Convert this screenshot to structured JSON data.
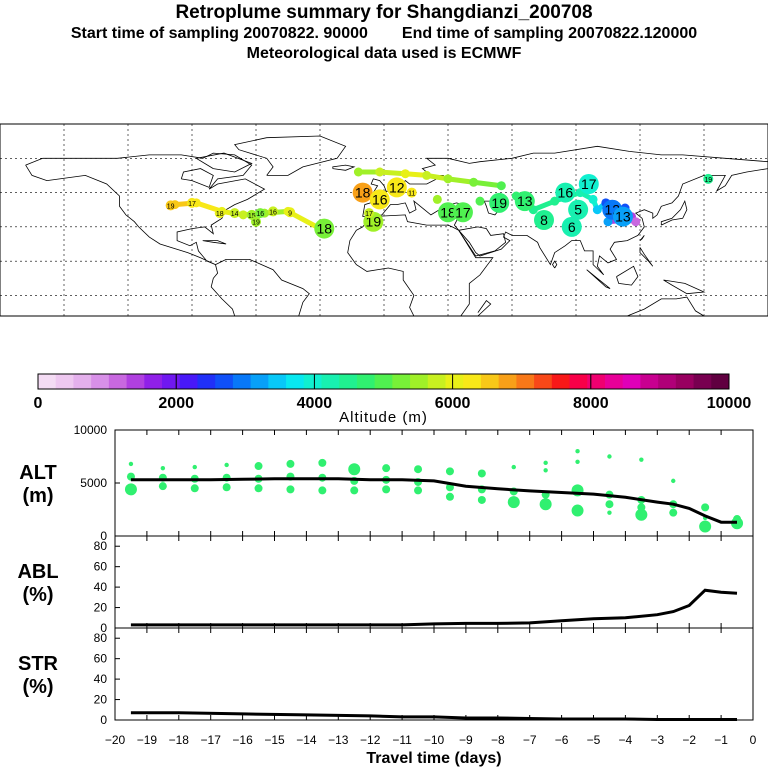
{
  "header": {
    "title": "Retroplume summary for Shangdianzi_200708",
    "start": "Start time of sampling 20070822. 90000",
    "end": "End time of sampling 20070822.120000",
    "met": "Meteorological data used is ECMWF"
  },
  "colorbar": {
    "label": "Altitude (m)",
    "ticks": [
      "0",
      "2000",
      "4000",
      "6000",
      "8000",
      "10000"
    ],
    "min": 0,
    "max": 10000,
    "colors": [
      "#f4dcf4",
      "#eec8f0",
      "#e4b0ec",
      "#d890e8",
      "#c868e0",
      "#b040e0",
      "#9020e8",
      "#7018f0",
      "#4818f8",
      "#2030f8",
      "#1050f8",
      "#0878f8",
      "#08a0f8",
      "#08c8f8",
      "#08e8f0",
      "#10f0d0",
      "#18f0b0",
      "#20f090",
      "#30f070",
      "#50f050",
      "#78f038",
      "#a0f028",
      "#c8f020",
      "#e8f018",
      "#f8e818",
      "#f8c818",
      "#f8a018",
      "#f87818",
      "#f84818",
      "#f81818",
      "#f80048",
      "#f00070",
      "#e80098",
      "#e000b8",
      "#c80090",
      "#b00078",
      "#980060",
      "#780050",
      "#600040"
    ]
  },
  "map": {
    "labels": [
      {
        "t": "19",
        "lon": -100.0,
        "lat": 42.5,
        "c": "#f8c818",
        "big": false
      },
      {
        "t": "17",
        "lon": -90.0,
        "lat": 44.0,
        "c": "#f8e818",
        "big": false
      },
      {
        "t": "18",
        "lon": -77.0,
        "lat": 38.0,
        "c": "#e8f018",
        "big": false
      },
      {
        "t": "14",
        "lon": -70.0,
        "lat": 38.0,
        "c": "#c8f020",
        "big": false
      },
      {
        "t": "15",
        "lon": -62.0,
        "lat": 37.0,
        "c": "#a0f028",
        "big": false
      },
      {
        "t": "16",
        "lon": -58.0,
        "lat": 38.0,
        "c": "#78f038",
        "big": false
      },
      {
        "t": "19",
        "lon": -60.0,
        "lat": 33.0,
        "c": "#a0f028",
        "big": false
      },
      {
        "t": "16",
        "lon": -52.0,
        "lat": 39.0,
        "c": "#c8f020",
        "big": false
      },
      {
        "t": "9",
        "lon": -44.0,
        "lat": 38.5,
        "c": "#e8f018",
        "big": false
      },
      {
        "t": "18",
        "lon": -28.0,
        "lat": 29.0,
        "c": "#78f038",
        "big": true
      },
      {
        "t": "19",
        "lon": -5.0,
        "lat": 33.0,
        "c": "#a0f028",
        "big": true
      },
      {
        "t": "17",
        "lon": -7.0,
        "lat": 38.0,
        "c": "#c8f020",
        "big": false
      },
      {
        "t": "18",
        "lon": -10.0,
        "lat": 50.0,
        "c": "#f8a018",
        "big": true
      },
      {
        "t": "16",
        "lon": -2.0,
        "lat": 46.0,
        "c": "#f8e818",
        "big": true
      },
      {
        "t": "12",
        "lon": 6.0,
        "lat": 53.0,
        "c": "#f8e818",
        "big": true
      },
      {
        "t": "11",
        "lon": 13.0,
        "lat": 50.0,
        "c": "#f8e818",
        "big": false
      },
      {
        "t": "18",
        "lon": 30.0,
        "lat": 38.5,
        "c": "#50f050",
        "big": true
      },
      {
        "t": "17",
        "lon": 37.0,
        "lat": 38.5,
        "c": "#50f050",
        "big": true
      },
      {
        "t": "19",
        "lon": 54.0,
        "lat": 44.0,
        "c": "#30f070",
        "big": true
      },
      {
        "t": "13",
        "lon": 66.0,
        "lat": 45.0,
        "c": "#30f070",
        "big": true
      },
      {
        "t": "8",
        "lon": 75.0,
        "lat": 34.0,
        "c": "#20f090",
        "big": true
      },
      {
        "t": "16",
        "lon": 85.0,
        "lat": 50.0,
        "c": "#18f0b0",
        "big": true
      },
      {
        "t": "17",
        "lon": 96.0,
        "lat": 55.0,
        "c": "#10f0d0",
        "big": true
      },
      {
        "t": "5",
        "lon": 91.0,
        "lat": 40.0,
        "c": "#18f0b0",
        "big": true
      },
      {
        "t": "6",
        "lon": 88.0,
        "lat": 30.0,
        "c": "#18f0b0",
        "big": true
      },
      {
        "t": "12",
        "lon": 107.0,
        "lat": 40.0,
        "c": "#0878f8",
        "big": true
      },
      {
        "t": "13",
        "lon": 112.0,
        "lat": 36.0,
        "c": "#08a0f8",
        "big": true
      },
      {
        "t": "19",
        "lon": 152.0,
        "lat": 58.0,
        "c": "#20f090",
        "big": false
      }
    ],
    "track": [
      {
        "lon": -98,
        "lat": 43,
        "c": "#f8c818"
      },
      {
        "lon": -88,
        "lat": 44,
        "c": "#f8e818"
      },
      {
        "lon": -76,
        "lat": 39,
        "c": "#e8f018"
      },
      {
        "lon": -66,
        "lat": 37,
        "c": "#c8f020"
      },
      {
        "lon": -56,
        "lat": 38,
        "c": "#a0f028"
      },
      {
        "lon": -45,
        "lat": 39,
        "c": "#e8f018"
      },
      {
        "lon": -30,
        "lat": 29,
        "c": "#78f038"
      },
      {
        "lon": -5,
        "lat": 35,
        "c": "#a0f028"
      },
      {
        "lon": -12,
        "lat": 62,
        "c": "#a0f028"
      },
      {
        "lon": -2,
        "lat": 62,
        "c": "#c8f020"
      },
      {
        "lon": 10,
        "lat": 61,
        "c": "#e8f018"
      },
      {
        "lon": 20,
        "lat": 60,
        "c": "#c8f020"
      },
      {
        "lon": 30,
        "lat": 58,
        "c": "#a0f028"
      },
      {
        "lon": 42,
        "lat": 56,
        "c": "#78f038"
      },
      {
        "lon": 55,
        "lat": 54,
        "c": "#50f050"
      },
      {
        "lon": 25,
        "lat": 46,
        "c": "#a0f028"
      },
      {
        "lon": 45,
        "lat": 45,
        "c": "#50f050"
      },
      {
        "lon": 62,
        "lat": 48,
        "c": "#30f070"
      },
      {
        "lon": 70,
        "lat": 40,
        "c": "#20f090"
      },
      {
        "lon": 80,
        "lat": 45,
        "c": "#20f090"
      },
      {
        "lon": 92,
        "lat": 50,
        "c": "#18f0b0"
      },
      {
        "lon": 98,
        "lat": 46,
        "c": "#10f0d0"
      },
      {
        "lon": 100,
        "lat": 40,
        "c": "#08c8f8"
      },
      {
        "lon": 104,
        "lat": 44,
        "c": "#1050f8"
      },
      {
        "lon": 108,
        "lat": 43,
        "c": "#2030f8"
      },
      {
        "lon": 110,
        "lat": 38,
        "c": "#0878f8"
      },
      {
        "lon": 113,
        "lat": 41,
        "c": "#1050f8"
      },
      {
        "lon": 116,
        "lat": 36,
        "c": "#b040e0"
      },
      {
        "lon": 118,
        "lat": 33,
        "c": "#c868e0"
      },
      {
        "lon": 114,
        "lat": 34,
        "c": "#b040e0"
      },
      {
        "lon": 105,
        "lat": 33,
        "c": "#08a0f8"
      }
    ]
  },
  "chart_data": [
    {
      "type": "scatter",
      "title": "ALT (m)",
      "panel_label": [
        "ALT",
        "(m)"
      ],
      "xlabel": "Travel time (days)",
      "x_ticks": [
        "−20",
        "−19",
        "−18",
        "−17",
        "−16",
        "−15",
        "−14",
        "−13",
        "−12",
        "−11",
        "−10",
        "−9",
        "−8",
        "−7",
        "−6",
        "−5",
        "−4",
        "−3",
        "−2",
        "−1",
        "0"
      ],
      "xlim": [
        -20,
        0
      ],
      "ylim": [
        0,
        10000
      ],
      "y_ticks": [
        "0",
        "5000",
        "10000"
      ],
      "median_line": {
        "x": [
          -19.5,
          -19,
          -18,
          -17,
          -16,
          -15,
          -14,
          -13,
          -12,
          -11,
          -10,
          -9,
          -8,
          -7,
          -6,
          -5,
          -4,
          -3,
          -2.5,
          -2,
          -1.5,
          -1,
          -0.5
        ],
        "y": [
          5300,
          5300,
          5300,
          5300,
          5350,
          5400,
          5400,
          5400,
          5300,
          5300,
          5200,
          4700,
          4450,
          4250,
          4100,
          3950,
          3650,
          3200,
          3000,
          2600,
          1900,
          1300,
          1300
        ]
      },
      "points": [
        {
          "x": -19.5,
          "y": 6800,
          "r": 1
        },
        {
          "x": -19.5,
          "y": 5600,
          "r": 2
        },
        {
          "x": -19.5,
          "y": 4400,
          "r": 3
        },
        {
          "x": -18.5,
          "y": 6400,
          "r": 1
        },
        {
          "x": -18.5,
          "y": 5500,
          "r": 2
        },
        {
          "x": -18.5,
          "y": 4700,
          "r": 2
        },
        {
          "x": -17.5,
          "y": 6500,
          "r": 1
        },
        {
          "x": -17.5,
          "y": 5400,
          "r": 2
        },
        {
          "x": -17.5,
          "y": 4500,
          "r": 2
        },
        {
          "x": -16.5,
          "y": 6700,
          "r": 1
        },
        {
          "x": -16.5,
          "y": 5500,
          "r": 2
        },
        {
          "x": -16.5,
          "y": 4600,
          "r": 2
        },
        {
          "x": -15.5,
          "y": 6600,
          "r": 2
        },
        {
          "x": -15.5,
          "y": 5400,
          "r": 2
        },
        {
          "x": -15.5,
          "y": 4500,
          "r": 2
        },
        {
          "x": -14.5,
          "y": 6800,
          "r": 2
        },
        {
          "x": -14.5,
          "y": 5600,
          "r": 2
        },
        {
          "x": -14.5,
          "y": 4400,
          "r": 2
        },
        {
          "x": -13.5,
          "y": 6900,
          "r": 2
        },
        {
          "x": -13.5,
          "y": 5500,
          "r": 2
        },
        {
          "x": -13.5,
          "y": 4300,
          "r": 2
        },
        {
          "x": -12.5,
          "y": 6300,
          "r": 3
        },
        {
          "x": -12.5,
          "y": 5200,
          "r": 2
        },
        {
          "x": -12.5,
          "y": 4300,
          "r": 2
        },
        {
          "x": -11.5,
          "y": 6400,
          "r": 2
        },
        {
          "x": -11.5,
          "y": 5300,
          "r": 2
        },
        {
          "x": -11.5,
          "y": 4400,
          "r": 2
        },
        {
          "x": -10.5,
          "y": 6300,
          "r": 2
        },
        {
          "x": -10.5,
          "y": 5100,
          "r": 2
        },
        {
          "x": -10.5,
          "y": 4300,
          "r": 2
        },
        {
          "x": -9.5,
          "y": 6100,
          "r": 2
        },
        {
          "x": -9.5,
          "y": 4600,
          "r": 2
        },
        {
          "x": -9.5,
          "y": 3700,
          "r": 2
        },
        {
          "x": -8.5,
          "y": 5900,
          "r": 2
        },
        {
          "x": -8.5,
          "y": 4400,
          "r": 2
        },
        {
          "x": -8.5,
          "y": 3400,
          "r": 2
        },
        {
          "x": -7.5,
          "y": 6500,
          "r": 1
        },
        {
          "x": -7.5,
          "y": 4200,
          "r": 2
        },
        {
          "x": -7.5,
          "y": 3200,
          "r": 3
        },
        {
          "x": -6.5,
          "y": 6900,
          "r": 1
        },
        {
          "x": -6.5,
          "y": 6200,
          "r": 1
        },
        {
          "x": -6.5,
          "y": 3900,
          "r": 2
        },
        {
          "x": -6.5,
          "y": 3000,
          "r": 3
        },
        {
          "x": -5.5,
          "y": 8000,
          "r": 1
        },
        {
          "x": -5.5,
          "y": 7000,
          "r": 1
        },
        {
          "x": -5.5,
          "y": 4300,
          "r": 3
        },
        {
          "x": -5.5,
          "y": 2400,
          "r": 3
        },
        {
          "x": -4.5,
          "y": 7500,
          "r": 1
        },
        {
          "x": -4.5,
          "y": 3900,
          "r": 2
        },
        {
          "x": -4.5,
          "y": 3000,
          "r": 2
        },
        {
          "x": -4.5,
          "y": 2200,
          "r": 1
        },
        {
          "x": -3.5,
          "y": 7200,
          "r": 1
        },
        {
          "x": -3.5,
          "y": 3400,
          "r": 2
        },
        {
          "x": -3.5,
          "y": 2700,
          "r": 2
        },
        {
          "x": -3.5,
          "y": 2000,
          "r": 3
        },
        {
          "x": -2.5,
          "y": 5200,
          "r": 1
        },
        {
          "x": -2.5,
          "y": 3000,
          "r": 2
        },
        {
          "x": -2.5,
          "y": 2200,
          "r": 2
        },
        {
          "x": -1.5,
          "y": 2700,
          "r": 2
        },
        {
          "x": -1.5,
          "y": 1700,
          "r": 1
        },
        {
          "x": -1.5,
          "y": 900,
          "r": 3
        },
        {
          "x": -0.5,
          "y": 1600,
          "r": 2
        },
        {
          "x": -0.5,
          "y": 1200,
          "r": 3
        }
      ]
    },
    {
      "type": "line",
      "title": "ABL (%)",
      "panel_label": [
        "ABL",
        "(%)"
      ],
      "xlim": [
        -20,
        0
      ],
      "ylim": [
        0,
        90
      ],
      "y_ticks": [
        "0",
        "20",
        "40",
        "60",
        "80"
      ],
      "x": [
        -19.5,
        -18,
        -16,
        -14,
        -12,
        -11,
        -10,
        -9,
        -8,
        -7,
        -6,
        -5,
        -4,
        -3,
        -2.5,
        -2,
        -1.5,
        -1,
        -0.5
      ],
      "y": [
        3,
        3,
        3,
        3,
        3,
        3,
        4,
        4.5,
        4.5,
        5,
        7,
        9,
        10,
        13,
        16,
        22,
        37,
        35,
        34
      ]
    },
    {
      "type": "line",
      "title": "STR (%)",
      "panel_label": [
        "STR",
        "(%)"
      ],
      "xlim": [
        -20,
        0
      ],
      "ylim": [
        0,
        90
      ],
      "y_ticks": [
        "0",
        "20",
        "40",
        "60",
        "80"
      ],
      "x": [
        -19.5,
        -18,
        -16,
        -14,
        -12,
        -11,
        -10,
        -9,
        -8,
        -7,
        -6,
        -5,
        -4,
        -3,
        -2,
        -1,
        -0.5
      ],
      "y": [
        7,
        7,
        6,
        5,
        4,
        3,
        3,
        2,
        2,
        1.5,
        1,
        1,
        1,
        0.5,
        0.5,
        0.5,
        0.5
      ]
    }
  ]
}
